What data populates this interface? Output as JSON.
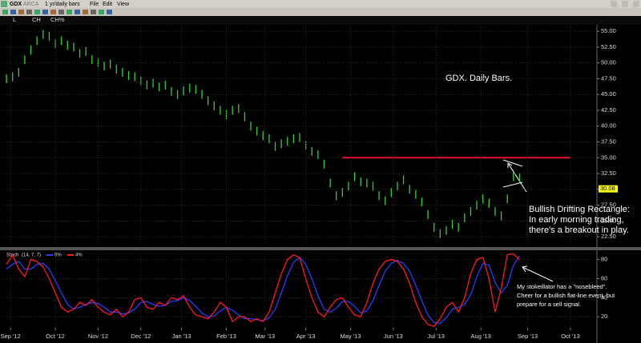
{
  "window": {
    "symbol": "GDX",
    "exchange": "ARCA",
    "period": "1 yr/daily bars",
    "menu": [
      "File",
      "Edit",
      "View"
    ],
    "header_fields": [
      "L",
      "CH",
      "CH%"
    ]
  },
  "chart_data": [
    {
      "type": "ohlc",
      "color": "#35d035",
      "annotations": [
        "GDX. Daily Bars.",
        "Bullish Drifting Rectangle:",
        "In early morning trading,",
        "there's a breakout in play."
      ],
      "x": [
        0,
        3,
        6,
        9,
        12,
        15,
        18,
        21,
        24,
        27,
        30,
        33,
        36,
        39,
        42,
        45,
        48,
        51,
        54,
        57,
        60,
        63,
        66,
        69,
        72,
        75,
        78,
        81,
        84,
        87,
        90,
        93,
        96,
        99,
        102,
        105,
        108,
        111,
        114,
        117,
        120,
        123,
        126,
        129,
        132,
        135,
        138,
        141,
        144,
        147,
        150,
        153,
        156,
        159,
        162,
        165,
        168,
        171,
        174,
        177,
        180,
        183,
        186,
        189,
        192,
        195,
        198,
        201,
        204,
        207,
        210,
        213,
        216,
        219,
        222,
        225,
        228,
        231,
        234,
        237,
        240,
        243,
        246,
        249,
        252
      ],
      "high": [
        48.2,
        48.5,
        49.2,
        51.2,
        52.7,
        54.2,
        55.2,
        54.9,
        53.7,
        54.2,
        53.5,
        53.2,
        52.2,
        52.5,
        51.2,
        50.7,
        50.2,
        50.5,
        49.7,
        49.2,
        48.7,
        48.5,
        47.9,
        47.2,
        47.5,
        46.9,
        47.2,
        46.2,
        45.7,
        46.3,
        46.7,
        46.5,
        45.7,
        44.7,
        43.9,
        43.2,
        42.5,
        43.2,
        43.5,
        42.2,
        40.7,
        39.9,
        39.2,
        38.7,
        37.5,
        37.9,
        38.3,
        38.7,
        38.9,
        37.7,
        36.7,
        36.2,
        34.7,
        31.7,
        29.7,
        30.2,
        31.2,
        32.7,
        31.9,
        31.7,
        31.2,
        29.7,
        28.9,
        30.2,
        31.2,
        32.2,
        30.7,
        29.9,
        28.7,
        26.7,
        24.7,
        23.7,
        24.2,
        25.2,
        24.7,
        26.2,
        27.2,
        28.2,
        29.2,
        28.5,
        27.2,
        26.5,
        29.2,
        32.7,
        32.5
      ],
      "low": [
        46.8,
        47.1,
        47.8,
        49.8,
        51.3,
        52.8,
        53.8,
        53.5,
        52.3,
        52.8,
        52.1,
        51.8,
        50.8,
        51.1,
        49.8,
        49.3,
        48.8,
        49.1,
        48.3,
        47.8,
        47.3,
        47.1,
        46.5,
        45.8,
        46.1,
        45.5,
        45.8,
        44.8,
        44.3,
        44.9,
        45.3,
        45.1,
        44.3,
        43.3,
        42.5,
        41.8,
        41.1,
        41.8,
        42.1,
        40.8,
        39.3,
        38.5,
        37.8,
        37.3,
        36.1,
        36.5,
        36.9,
        37.3,
        37.5,
        36.3,
        35.3,
        34.8,
        33.3,
        30.3,
        28.3,
        28.8,
        29.8,
        31.3,
        30.5,
        30.3,
        29.8,
        28.3,
        27.5,
        28.8,
        29.8,
        30.8,
        29.3,
        28.5,
        27.3,
        25.3,
        23.3,
        22.3,
        22.8,
        23.8,
        23.3,
        24.8,
        25.8,
        26.8,
        27.8,
        27.1,
        25.8,
        25.1,
        27.8,
        31.3,
        31.1
      ],
      "xlim": [
        -2,
        290
      ],
      "ylim": [
        21,
        55.9
      ],
      "yticks": [
        {
          "value": 55,
          "label": "55.00"
        },
        {
          "value": 52.5,
          "label": "52.50"
        },
        {
          "value": 50,
          "label": "50.00"
        },
        {
          "value": 47.5,
          "label": "47.50"
        },
        {
          "value": 45,
          "label": "45.00"
        },
        {
          "value": 42.5,
          "label": "42.50"
        },
        {
          "value": 40,
          "label": "40.00"
        },
        {
          "value": 37.5,
          "label": "37.50"
        },
        {
          "value": 35,
          "label": "35.00"
        },
        {
          "value": 32.5,
          "label": "32.50"
        },
        {
          "value": 30,
          "label": "30.00"
        },
        {
          "value": 27.5,
          "label": "27.50"
        },
        {
          "value": 25,
          "label": "25.00"
        },
        {
          "value": 22.5,
          "label": "22.50"
        }
      ],
      "grid": true,
      "reference_line": {
        "value": 35,
        "x": [
          165,
          277
        ],
        "color": "#e8102a"
      },
      "last_price": 30.08
    },
    {
      "type": "line",
      "title": "Stoch",
      "subtitle": "(14, 7, 7)",
      "annotations": [
        "My stokeillator has a \"nosebleed\".",
        "Cheer for a bullish flat-line event, but",
        "prepare for a sell signal."
      ],
      "x": [
        0,
        3,
        6,
        9,
        12,
        15,
        18,
        21,
        24,
        27,
        30,
        33,
        36,
        39,
        42,
        45,
        48,
        51,
        54,
        57,
        60,
        63,
        66,
        69,
        72,
        75,
        78,
        81,
        84,
        87,
        90,
        93,
        96,
        99,
        102,
        105,
        108,
        111,
        114,
        117,
        120,
        123,
        126,
        129,
        132,
        135,
        138,
        141,
        144,
        147,
        150,
        153,
        156,
        159,
        162,
        165,
        168,
        171,
        174,
        177,
        180,
        183,
        186,
        189,
        192,
        195,
        198,
        201,
        204,
        207,
        210,
        213,
        216,
        219,
        222,
        225,
        228,
        231,
        234,
        237,
        240,
        243,
        246,
        249,
        252
      ],
      "series": [
        {
          "name": "0%",
          "color": "#2a3cff",
          "values": [
            70,
            75,
            78,
            70,
            70,
            75,
            76,
            70,
            58,
            45,
            33,
            28,
            30,
            33,
            35,
            34,
            30,
            25,
            25,
            23,
            24,
            28,
            35,
            36,
            33,
            31,
            32,
            36,
            37,
            40,
            37,
            31,
            24,
            20,
            21,
            26,
            30,
            27,
            22,
            18,
            18,
            17,
            16,
            19,
            28,
            45,
            63,
            77,
            82,
            75,
            60,
            42,
            28,
            25,
            29,
            36,
            36,
            31,
            24,
            26,
            37,
            53,
            68,
            76,
            79,
            76,
            68,
            53,
            37,
            22,
            14,
            13,
            19,
            28,
            30,
            33,
            43,
            62,
            76,
            74,
            56,
            45,
            53,
            74,
            84
          ]
        },
        {
          "name": "4%",
          "color": "#ff1a1a",
          "values": [
            75,
            85,
            70,
            62,
            80,
            78,
            72,
            60,
            45,
            30,
            25,
            28,
            35,
            32,
            38,
            30,
            25,
            22,
            28,
            20,
            25,
            38,
            40,
            30,
            28,
            35,
            32,
            40,
            38,
            42,
            30,
            22,
            20,
            18,
            25,
            35,
            30,
            15,
            20,
            20,
            15,
            18,
            15,
            25,
            45,
            65,
            80,
            85,
            82,
            60,
            40,
            25,
            20,
            30,
            38,
            40,
            30,
            22,
            20,
            35,
            55,
            70,
            78,
            80,
            78,
            70,
            55,
            35,
            20,
            12,
            10,
            18,
            30,
            35,
            25,
            40,
            65,
            80,
            82,
            60,
            25,
            50,
            85,
            86,
            80
          ]
        }
      ],
      "xlim": [
        -2,
        290
      ],
      "ylim": [
        8.5,
        85.5
      ],
      "yticks": [
        20,
        40,
        60,
        80
      ],
      "xticks": [
        {
          "value": 2,
          "label": "Sep '12"
        },
        {
          "value": 24,
          "label": "Oct '12"
        },
        {
          "value": 45,
          "label": "Nov '12"
        },
        {
          "value": 66,
          "label": "Dec '12"
        },
        {
          "value": 86,
          "label": "Jan '13"
        },
        {
          "value": 108,
          "label": "Feb '13"
        },
        {
          "value": 127,
          "label": "Mar '13"
        },
        {
          "value": 147,
          "label": "Apr '13"
        },
        {
          "value": 169,
          "label": "May '13"
        },
        {
          "value": 190,
          "label": "Jun '13"
        },
        {
          "value": 211,
          "label": "Jul '13"
        },
        {
          "value": 233,
          "label": "Aug '13"
        },
        {
          "value": 256,
          "label": "Sep '13"
        },
        {
          "value": 277,
          "label": "Oct '13"
        }
      ],
      "grid": true
    }
  ]
}
